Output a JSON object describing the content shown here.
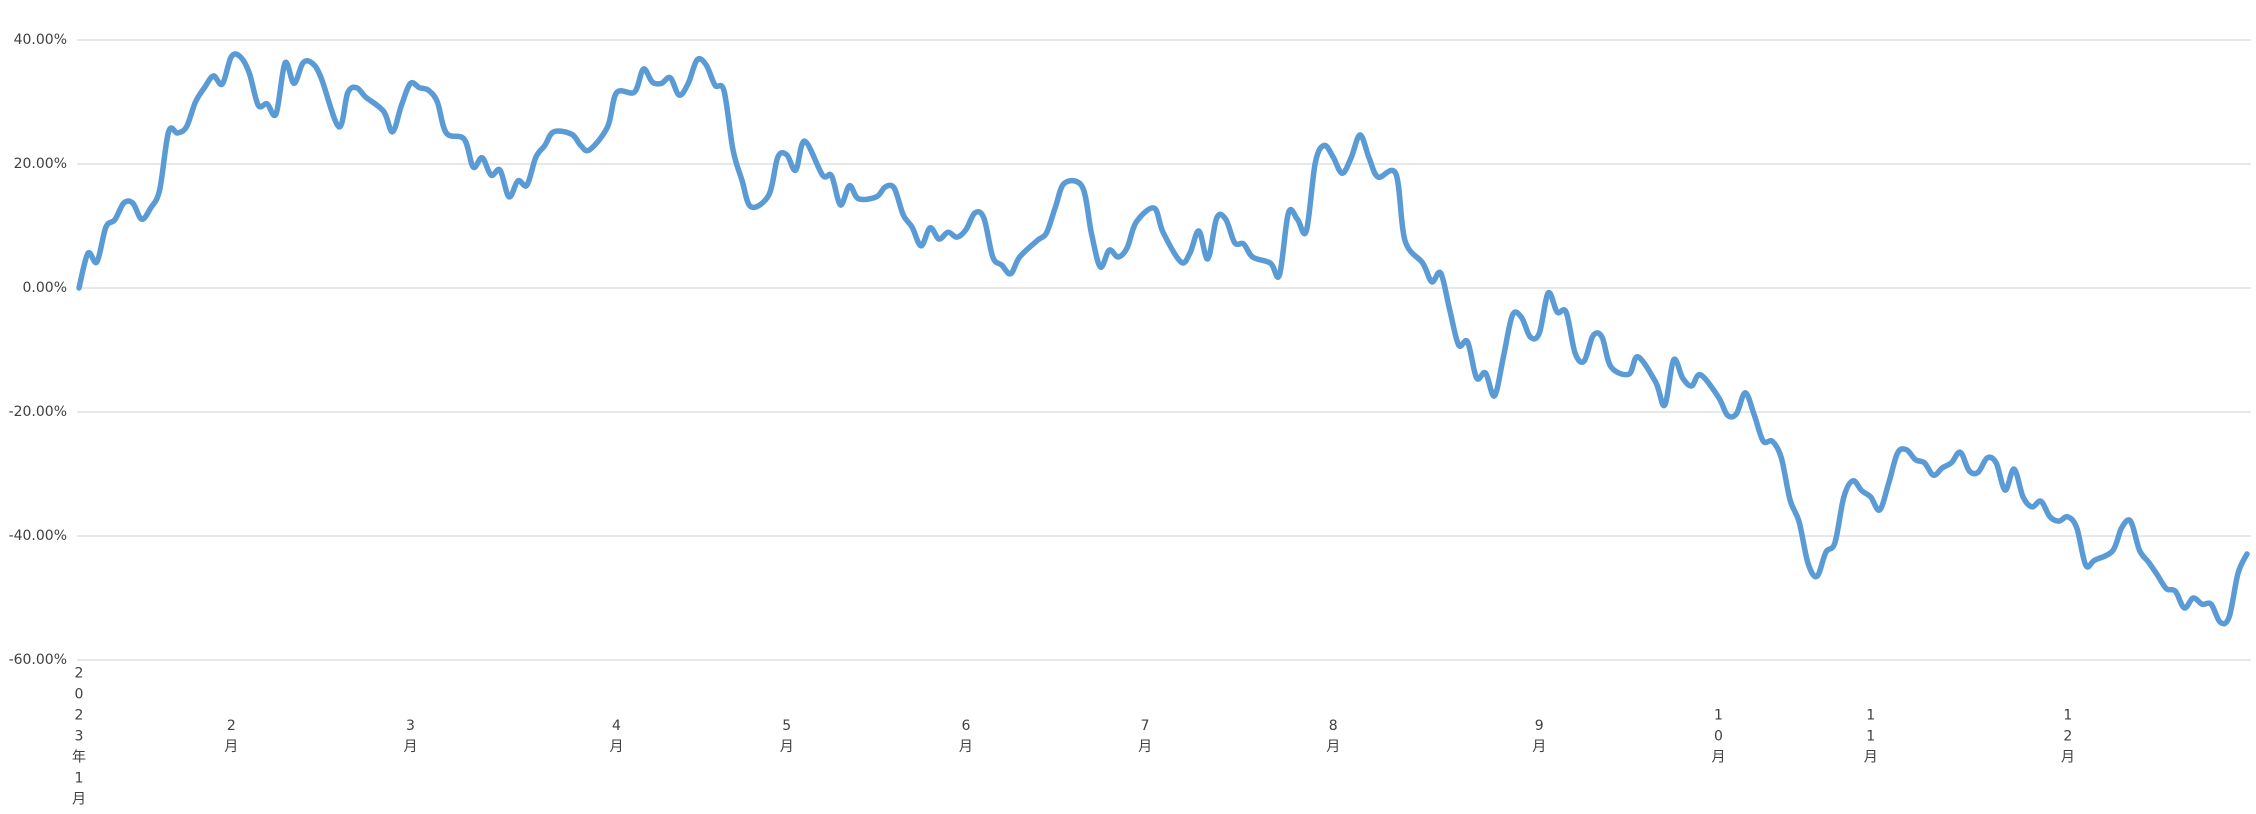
{
  "chart_data": {
    "type": "line",
    "title": "",
    "xlabel": "",
    "ylabel": "",
    "x_axis_kind": "category (trading days)",
    "x_range": [
      0,
      242
    ],
    "ylim": [
      -60,
      40
    ],
    "y_ticks": [
      40,
      20,
      0,
      -20,
      -40,
      -60
    ],
    "y_tick_labels": [
      "40.00%",
      "20.00%",
      "0.00%",
      "-20.00%",
      "-40.00%",
      "-60.00%"
    ],
    "x_ticks": [
      {
        "x": 0,
        "label": "2023年1月"
      },
      {
        "x": 17,
        "label": "2月"
      },
      {
        "x": 37,
        "label": "3月"
      },
      {
        "x": 60,
        "label": "4月"
      },
      {
        "x": 79,
        "label": "5月"
      },
      {
        "x": 99,
        "label": "6月"
      },
      {
        "x": 119,
        "label": "7月"
      },
      {
        "x": 140,
        "label": "8月"
      },
      {
        "x": 163,
        "label": "9月"
      },
      {
        "x": 183,
        "label": "10月"
      },
      {
        "x": 200,
        "label": "11月"
      },
      {
        "x": 222,
        "label": "12月"
      }
    ],
    "grid": true,
    "legend": "none",
    "series": [
      {
        "color": "#5B9BD5",
        "points": [
          [
            0,
            0
          ],
          [
            1,
            5.6
          ],
          [
            2,
            4.2
          ],
          [
            3,
            9.8
          ],
          [
            4,
            11
          ],
          [
            5,
            13.7
          ],
          [
            6,
            13.7
          ],
          [
            7,
            11.1
          ],
          [
            8,
            12.9
          ],
          [
            9,
            15.8
          ],
          [
            10,
            25.2
          ],
          [
            11,
            25
          ],
          [
            12,
            26
          ],
          [
            13,
            30
          ],
          [
            14,
            32.3
          ],
          [
            15,
            34.2
          ],
          [
            16,
            32.9
          ],
          [
            17,
            37.3
          ],
          [
            18,
            37.3
          ],
          [
            19,
            34.7
          ],
          [
            20,
            29.5
          ],
          [
            21,
            29.7
          ],
          [
            22,
            28.1
          ],
          [
            23,
            36.3
          ],
          [
            24,
            33
          ],
          [
            25,
            36.3
          ],
          [
            26,
            36.3
          ],
          [
            27,
            34
          ],
          [
            29,
            26
          ],
          [
            30,
            31.5
          ],
          [
            31,
            32.3
          ],
          [
            32,
            30.8
          ],
          [
            34,
            28.5
          ],
          [
            35,
            25.2
          ],
          [
            36,
            29.5
          ],
          [
            37,
            33
          ],
          [
            38,
            32.3
          ],
          [
            39,
            31.9
          ],
          [
            40,
            30
          ],
          [
            41,
            25
          ],
          [
            43,
            24
          ],
          [
            44,
            19.5
          ],
          [
            45,
            21
          ],
          [
            46,
            18.2
          ],
          [
            47,
            19
          ],
          [
            48,
            14.7
          ],
          [
            49,
            17.3
          ],
          [
            50,
            16.6
          ],
          [
            51,
            21.1
          ],
          [
            52,
            23
          ],
          [
            53,
            25.2
          ],
          [
            55,
            24.8
          ],
          [
            56,
            23
          ],
          [
            57,
            22.3
          ],
          [
            59,
            26
          ],
          [
            60,
            31.5
          ],
          [
            62,
            31.6
          ],
          [
            63,
            35.3
          ],
          [
            64,
            33.2
          ],
          [
            65,
            33
          ],
          [
            66,
            33.9
          ],
          [
            67,
            31.1
          ],
          [
            68,
            33
          ],
          [
            69,
            36.8
          ],
          [
            70,
            36
          ],
          [
            71,
            32.7
          ],
          [
            72,
            31.8
          ],
          [
            73,
            22.3
          ],
          [
            74,
            17.4
          ],
          [
            75,
            13.1
          ],
          [
            77,
            15
          ],
          [
            78,
            21.1
          ],
          [
            79,
            21.5
          ],
          [
            80,
            19
          ],
          [
            81,
            23.7
          ],
          [
            83,
            18.2
          ],
          [
            84,
            18.1
          ],
          [
            85,
            13.4
          ],
          [
            86,
            16.5
          ],
          [
            87,
            14.4
          ],
          [
            89,
            14.7
          ],
          [
            90,
            16.3
          ],
          [
            91,
            16.1
          ],
          [
            92,
            11.8
          ],
          [
            93,
            9.8
          ],
          [
            94,
            6.8
          ],
          [
            95,
            9.7
          ],
          [
            96,
            7.9
          ],
          [
            97,
            9
          ],
          [
            98,
            8.2
          ],
          [
            99,
            9.4
          ],
          [
            100,
            12.1
          ],
          [
            101,
            11.3
          ],
          [
            102,
            5
          ],
          [
            103,
            3.7
          ],
          [
            104,
            2.3
          ],
          [
            105,
            5
          ],
          [
            107,
            7.7
          ],
          [
            108,
            8.9
          ],
          [
            109,
            13.1
          ],
          [
            110,
            16.9
          ],
          [
            112,
            16.3
          ],
          [
            113,
            8.9
          ],
          [
            114,
            3.4
          ],
          [
            115,
            6.1
          ],
          [
            116,
            5
          ],
          [
            117,
            6.5
          ],
          [
            118,
            10.6
          ],
          [
            120,
            12.9
          ],
          [
            121,
            9
          ],
          [
            123,
            4.2
          ],
          [
            124,
            5.6
          ],
          [
            125,
            9.2
          ],
          [
            126,
            4.7
          ],
          [
            127,
            11.3
          ],
          [
            128,
            11.1
          ],
          [
            129,
            7.3
          ],
          [
            130,
            7.1
          ],
          [
            131,
            5
          ],
          [
            133,
            4
          ],
          [
            134,
            2.1
          ],
          [
            135,
            12.1
          ],
          [
            136,
            11.1
          ],
          [
            137,
            9.2
          ],
          [
            138,
            20.2
          ],
          [
            139,
            23
          ],
          [
            140,
            21.1
          ],
          [
            141,
            18.5
          ],
          [
            142,
            21
          ],
          [
            143,
            24.7
          ],
          [
            144,
            21
          ],
          [
            145,
            17.9
          ],
          [
            147,
            18.4
          ],
          [
            148,
            7.7
          ],
          [
            150,
            4
          ],
          [
            151,
            1
          ],
          [
            152,
            2.4
          ],
          [
            153,
            -3.5
          ],
          [
            154,
            -9.2
          ],
          [
            155,
            -8.7
          ],
          [
            156,
            -14.5
          ],
          [
            157,
            -13.7
          ],
          [
            158,
            -17.4
          ],
          [
            159,
            -11.1
          ],
          [
            160,
            -4.4
          ],
          [
            161,
            -4.7
          ],
          [
            162,
            -7.9
          ],
          [
            163,
            -7.3
          ],
          [
            164,
            -0.8
          ],
          [
            165,
            -3.9
          ],
          [
            166,
            -3.9
          ],
          [
            167,
            -10.5
          ],
          [
            168,
            -11.8
          ],
          [
            169,
            -7.7
          ],
          [
            170,
            -7.9
          ],
          [
            171,
            -12.7
          ],
          [
            173,
            -13.9
          ],
          [
            174,
            -11.1
          ],
          [
            176,
            -15.2
          ],
          [
            177,
            -18.9
          ],
          [
            178,
            -11.6
          ],
          [
            179,
            -14.5
          ],
          [
            180,
            -15.8
          ],
          [
            181,
            -14
          ],
          [
            183,
            -17.6
          ],
          [
            184,
            -20.5
          ],
          [
            185,
            -20.3
          ],
          [
            186,
            -16.9
          ],
          [
            187,
            -20.5
          ],
          [
            188,
            -24.7
          ],
          [
            189,
            -24.7
          ],
          [
            190,
            -27.3
          ],
          [
            191,
            -34.2
          ],
          [
            192,
            -37.7
          ],
          [
            193,
            -44.4
          ],
          [
            194,
            -46.5
          ],
          [
            195,
            -42.6
          ],
          [
            196,
            -41.1
          ],
          [
            197,
            -33.7
          ],
          [
            198,
            -31.1
          ],
          [
            199,
            -32.7
          ],
          [
            200,
            -33.7
          ],
          [
            201,
            -35.8
          ],
          [
            202,
            -31.5
          ],
          [
            203,
            -26.6
          ],
          [
            204,
            -26.1
          ],
          [
            205,
            -27.7
          ],
          [
            206,
            -28.2
          ],
          [
            207,
            -30.2
          ],
          [
            208,
            -29
          ],
          [
            209,
            -28.2
          ],
          [
            210,
            -26.5
          ],
          [
            211,
            -29.5
          ],
          [
            212,
            -29.7
          ],
          [
            213,
            -27.4
          ],
          [
            214,
            -28.2
          ],
          [
            215,
            -32.6
          ],
          [
            216,
            -29.2
          ],
          [
            217,
            -33.7
          ],
          [
            218,
            -35.3
          ],
          [
            219,
            -34.4
          ],
          [
            220,
            -36.9
          ],
          [
            221,
            -37.6
          ],
          [
            222,
            -36.9
          ],
          [
            223,
            -38.7
          ],
          [
            224,
            -44.7
          ],
          [
            225,
            -43.9
          ],
          [
            227,
            -42.4
          ],
          [
            228,
            -38.7
          ],
          [
            229,
            -37.6
          ],
          [
            230,
            -42.3
          ],
          [
            231,
            -44.2
          ],
          [
            232,
            -46.3
          ],
          [
            233,
            -48.5
          ],
          [
            234,
            -48.9
          ],
          [
            235,
            -51.6
          ],
          [
            236,
            -50
          ],
          [
            237,
            -51
          ],
          [
            238,
            -51
          ],
          [
            239,
            -53.9
          ],
          [
            240,
            -53.1
          ],
          [
            241,
            -46
          ],
          [
            242,
            -42.9
          ]
        ]
      }
    ]
  },
  "colors": {
    "line": "#5B9BD5",
    "grid": "#D9D9D9",
    "text": "#404040"
  }
}
